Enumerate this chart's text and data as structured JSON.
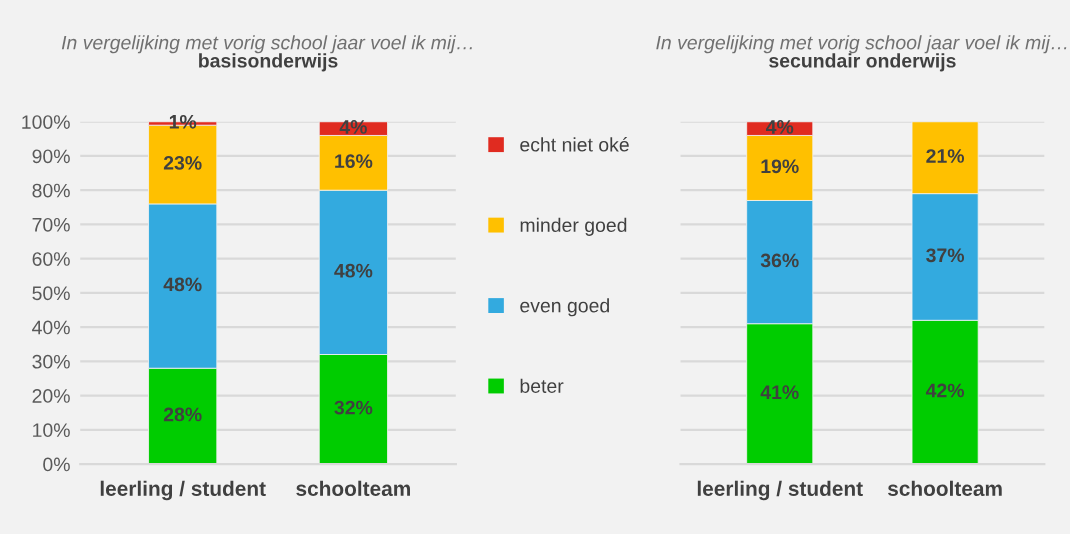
{
  "chart_data": [
    {
      "type": "bar",
      "stacked": true,
      "title": "In vergelijking met vorig school jaar voel ik mij…",
      "subtitle": "basisonderwijs",
      "categories": [
        "leerling / student",
        "schoolteam"
      ],
      "ylim": [
        0,
        100
      ],
      "yticks": [
        {
          "value": 0,
          "label": "0%"
        },
        {
          "value": 10,
          "label": "10%"
        },
        {
          "value": 20,
          "label": "20%"
        },
        {
          "value": 30,
          "label": "30%"
        },
        {
          "value": 40,
          "label": "40%"
        },
        {
          "value": 50,
          "label": "50%"
        },
        {
          "value": 60,
          "label": "60%"
        },
        {
          "value": 70,
          "label": "70%"
        },
        {
          "value": 80,
          "label": "80%"
        },
        {
          "value": 90,
          "label": "90%"
        },
        {
          "value": 100,
          "label": "100%"
        }
      ],
      "grid": "y",
      "legend": "right",
      "series": [
        {
          "name": "beter",
          "color": "#00cc00",
          "values": [
            28,
            32
          ],
          "value_labels": [
            "28%",
            "32%"
          ]
        },
        {
          "name": "even goed",
          "color": "#33aadf",
          "values": [
            48,
            48
          ],
          "value_labels": [
            "48%",
            "48%"
          ]
        },
        {
          "name": "minder goed",
          "color": "#ffc000",
          "values": [
            23,
            16
          ],
          "value_labels": [
            "23%",
            "16%"
          ]
        },
        {
          "name": "echt niet oké",
          "color": "#e02b20",
          "values": [
            1,
            4
          ],
          "value_labels": [
            "1%",
            "4%"
          ]
        }
      ]
    },
    {
      "type": "bar",
      "stacked": true,
      "title": "In vergelijking met vorig school jaar voel ik mij…",
      "subtitle": "secundair onderwijs",
      "categories": [
        "leerling / student",
        "schoolteam"
      ],
      "ylim": [
        0,
        100
      ],
      "yticks": [
        {
          "value": 0,
          "label": null
        },
        {
          "value": 10,
          "label": null
        },
        {
          "value": 20,
          "label": null
        },
        {
          "value": 30,
          "label": null
        },
        {
          "value": 40,
          "label": null
        },
        {
          "value": 50,
          "label": null
        },
        {
          "value": 60,
          "label": null
        },
        {
          "value": 70,
          "label": null
        },
        {
          "value": 80,
          "label": null
        },
        {
          "value": 90,
          "label": null
        },
        {
          "value": 100,
          "label": null
        }
      ],
      "grid": "y",
      "tick_labels": "x",
      "series": [
        {
          "color": "#00cc00",
          "values": [
            41,
            42
          ],
          "value_labels": [
            "41%",
            "42%"
          ]
        },
        {
          "color": "#33aadf",
          "values": [
            36,
            37
          ],
          "value_labels": [
            "36%",
            "37%"
          ]
        },
        {
          "color": "#ffc000",
          "values": [
            19,
            21
          ],
          "value_labels": [
            "19%",
            "21%"
          ]
        },
        {
          "color": "#e02b20",
          "values": [
            4,
            null
          ],
          "value_labels": [
            "4%",
            null
          ]
        }
      ]
    }
  ]
}
